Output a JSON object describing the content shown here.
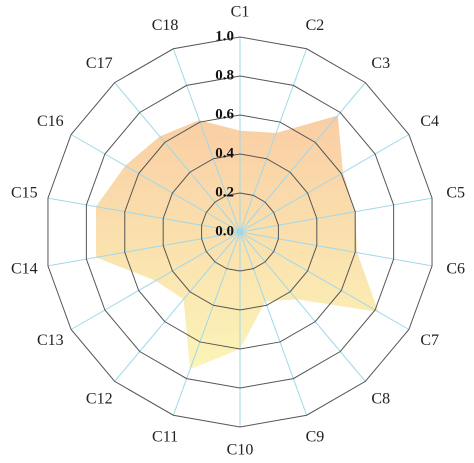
{
  "chart_data": {
    "type": "radar",
    "categories": [
      "C1",
      "C2",
      "C3",
      "C4",
      "C5",
      "C6",
      "C7",
      "C8",
      "C9",
      "C10",
      "C11",
      "C12",
      "C13",
      "C14",
      "C15",
      "C16",
      "C17",
      "C18"
    ],
    "values": [
      0.52,
      0.54,
      0.78,
      0.61,
      0.6,
      0.61,
      0.82,
      0.45,
      0.38,
      0.6,
      0.75,
      0.45,
      0.5,
      0.75,
      0.75,
      0.68,
      0.64,
      0.61
    ],
    "rlim": [
      0,
      1.0
    ],
    "rticks": [
      {
        "value": 0,
        "label": "0.0"
      },
      {
        "value": 0.2,
        "label": "0.2"
      },
      {
        "value": 0.4,
        "label": "0.4"
      },
      {
        "value": 0.6,
        "label": "0.6"
      },
      {
        "value": 0.8,
        "label": "0.8"
      },
      {
        "value": 1.0,
        "label": "1.0"
      }
    ],
    "fill_colors": [
      "#f9c89a",
      "#fbf3b0"
    ],
    "grid_color": "#555555",
    "spoke_color": "#9fd8ea"
  }
}
